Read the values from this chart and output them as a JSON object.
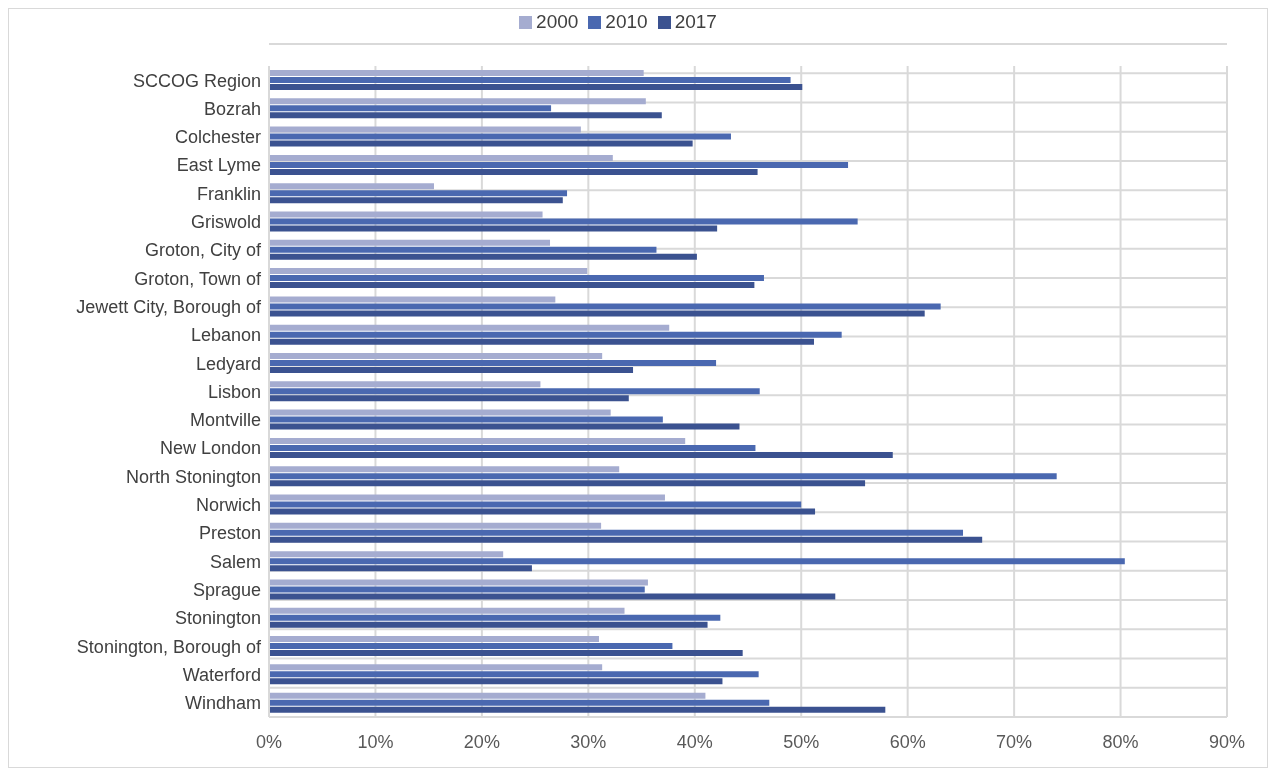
{
  "chart_data": {
    "type": "bar",
    "orientation": "horizontal",
    "categories": [
      "SCCOG Region",
      "Bozrah",
      "Colchester",
      "East Lyme",
      "Franklin",
      "Griswold",
      "Groton, City of",
      "Groton, Town of",
      "Jewett City, Borough of",
      "Lebanon",
      "Ledyard",
      "Lisbon",
      "Montville",
      "New London",
      "North Stonington",
      "Norwich",
      "Preston",
      "Salem",
      "Sprague",
      "Stonington",
      "Stonington, Borough of",
      "Waterford",
      "Windham"
    ],
    "series": [
      {
        "name": "2000",
        "color": "#a5acd0",
        "values": [
          35.2,
          35.4,
          29.3,
          32.3,
          15.5,
          25.7,
          26.4,
          29.9,
          26.9,
          37.6,
          31.3,
          25.5,
          32.1,
          39.1,
          32.9,
          37.2,
          31.2,
          22.0,
          35.6,
          33.4,
          31.0,
          31.3,
          41.0
        ]
      },
      {
        "name": "2010",
        "color": "#4a68b0",
        "values": [
          49.0,
          26.5,
          43.4,
          54.4,
          28.0,
          55.3,
          36.4,
          46.5,
          63.1,
          53.8,
          42.0,
          46.1,
          37.0,
          45.7,
          74.0,
          50.0,
          65.2,
          80.4,
          35.3,
          42.4,
          37.9,
          46.0,
          47.0
        ]
      },
      {
        "name": "2017",
        "color": "#3b5290",
        "values": [
          50.1,
          36.9,
          39.8,
          45.9,
          27.6,
          42.1,
          40.2,
          45.6,
          61.6,
          51.2,
          34.2,
          33.8,
          44.2,
          58.6,
          56.0,
          51.3,
          67.0,
          24.7,
          53.2,
          41.2,
          44.5,
          42.6,
          57.9
        ]
      }
    ],
    "xlim": [
      0,
      90
    ],
    "xticks": [
      {
        "value": 0,
        "label": "0%"
      },
      {
        "value": 10,
        "label": "10%"
      },
      {
        "value": 20,
        "label": "20%"
      },
      {
        "value": 30,
        "label": "30%"
      },
      {
        "value": 40,
        "label": "40%"
      },
      {
        "value": 50,
        "label": "50%"
      },
      {
        "value": 60,
        "label": "60%"
      },
      {
        "value": 70,
        "label": "70%"
      },
      {
        "value": 80,
        "label": "80%"
      },
      {
        "value": 90,
        "label": "90%"
      }
    ],
    "grid": true,
    "legend": "top"
  }
}
